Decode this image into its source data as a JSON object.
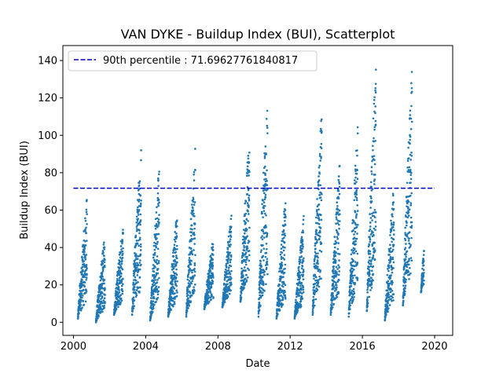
{
  "chart_data": {
    "type": "scatter",
    "title": "VAN DYKE - Buildup Index (BUI), Scatterplot",
    "xlabel": "Date",
    "ylabel": "Buildup Index (BUI)",
    "xlim": [
      "1999-06-01",
      "2021-01-01"
    ],
    "ylim": [
      -7,
      148
    ],
    "xticks": [
      2000,
      2004,
      2008,
      2012,
      2016,
      2020
    ],
    "yticks": [
      0,
      20,
      40,
      60,
      80,
      100,
      120,
      140
    ],
    "grid": false,
    "legend_position": "upper-left",
    "point_color": "#1f77b4",
    "reference_line": {
      "label": "90th percentile : 71.69627761840817",
      "y": 71.69627761840817,
      "x_start": "2000-01-01",
      "x_end": "2020-01-01",
      "color": "#0000cc",
      "style": "dashed"
    },
    "seasons": [
      {
        "start": "2000-04-01",
        "end": "2000-10-01",
        "min": 2,
        "max": 68
      },
      {
        "start": "2001-04-01",
        "end": "2001-10-01",
        "min": 0,
        "max": 48
      },
      {
        "start": "2002-04-01",
        "end": "2002-10-01",
        "min": 4,
        "max": 54
      },
      {
        "start": "2003-04-01",
        "end": "2003-10-01",
        "min": 4,
        "max": 97
      },
      {
        "start": "2004-04-01",
        "end": "2004-10-01",
        "min": 1,
        "max": 85
      },
      {
        "start": "2005-04-01",
        "end": "2005-10-01",
        "min": 3,
        "max": 62
      },
      {
        "start": "2006-04-01",
        "end": "2006-10-01",
        "min": 3,
        "max": 95
      },
      {
        "start": "2007-04-01",
        "end": "2007-10-01",
        "min": 7,
        "max": 46
      },
      {
        "start": "2008-04-01",
        "end": "2008-10-01",
        "min": 8,
        "max": 59
      },
      {
        "start": "2009-04-01",
        "end": "2009-10-01",
        "min": 11,
        "max": 104
      },
      {
        "start": "2010-04-01",
        "end": "2010-10-01",
        "min": 3,
        "max": 129
      },
      {
        "start": "2011-04-01",
        "end": "2011-10-01",
        "min": 2,
        "max": 68
      },
      {
        "start": "2012-04-01",
        "end": "2012-10-01",
        "min": 2,
        "max": 57
      },
      {
        "start": "2013-04-01",
        "end": "2013-10-01",
        "min": 4,
        "max": 116
      },
      {
        "start": "2014-04-01",
        "end": "2014-10-01",
        "min": 4,
        "max": 87
      },
      {
        "start": "2015-04-01",
        "end": "2015-10-01",
        "min": 3,
        "max": 108
      },
      {
        "start": "2016-04-01",
        "end": "2016-10-01",
        "min": 6,
        "max": 141
      },
      {
        "start": "2017-04-01",
        "end": "2017-10-01",
        "min": 1,
        "max": 75
      },
      {
        "start": "2018-04-01",
        "end": "2018-10-01",
        "min": 9,
        "max": 136
      },
      {
        "start": "2019-04-01",
        "end": "2019-06-01",
        "min": 16,
        "max": 42
      }
    ]
  }
}
